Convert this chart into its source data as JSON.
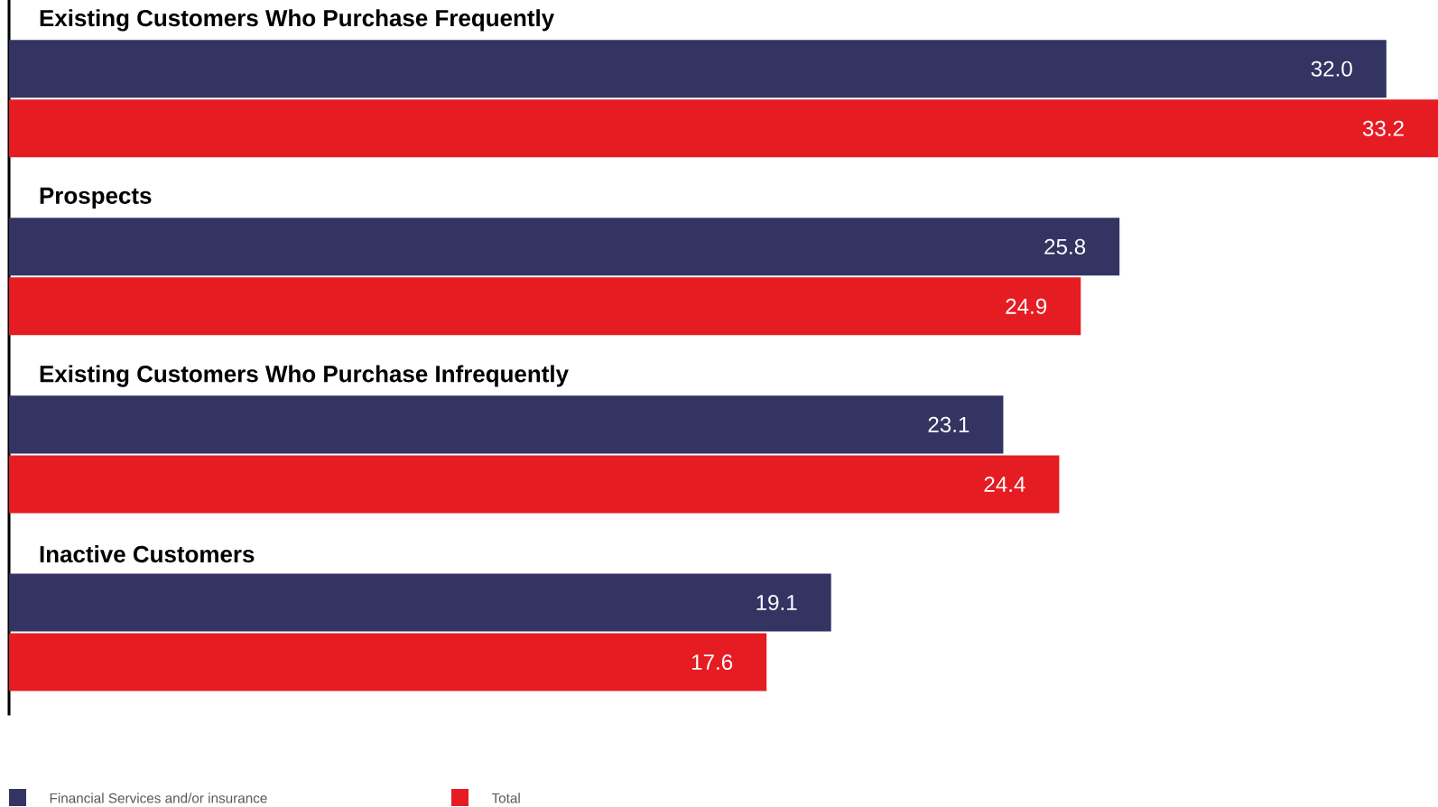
{
  "chart_data": {
    "type": "bar",
    "orientation": "horizontal",
    "categories": [
      "Existing Customers Who Purchase Frequently",
      "Prospects",
      "Existing Customers Who Purchase Infrequently",
      "Inactive Customers"
    ],
    "series": [
      {
        "name": "Financial Services and/or insurance",
        "color": "#343463",
        "values": [
          32.0,
          25.8,
          23.1,
          19.1
        ],
        "value_labels": [
          "32.0",
          "25.8",
          "23.1",
          "19.1"
        ]
      },
      {
        "name": "Total",
        "color": "#e61c23",
        "values": [
          33.2,
          24.9,
          24.4,
          17.6
        ],
        "value_labels": [
          "33.2",
          "24.9",
          "24.4",
          "17.6"
        ]
      }
    ],
    "legend": "bottom left"
  }
}
